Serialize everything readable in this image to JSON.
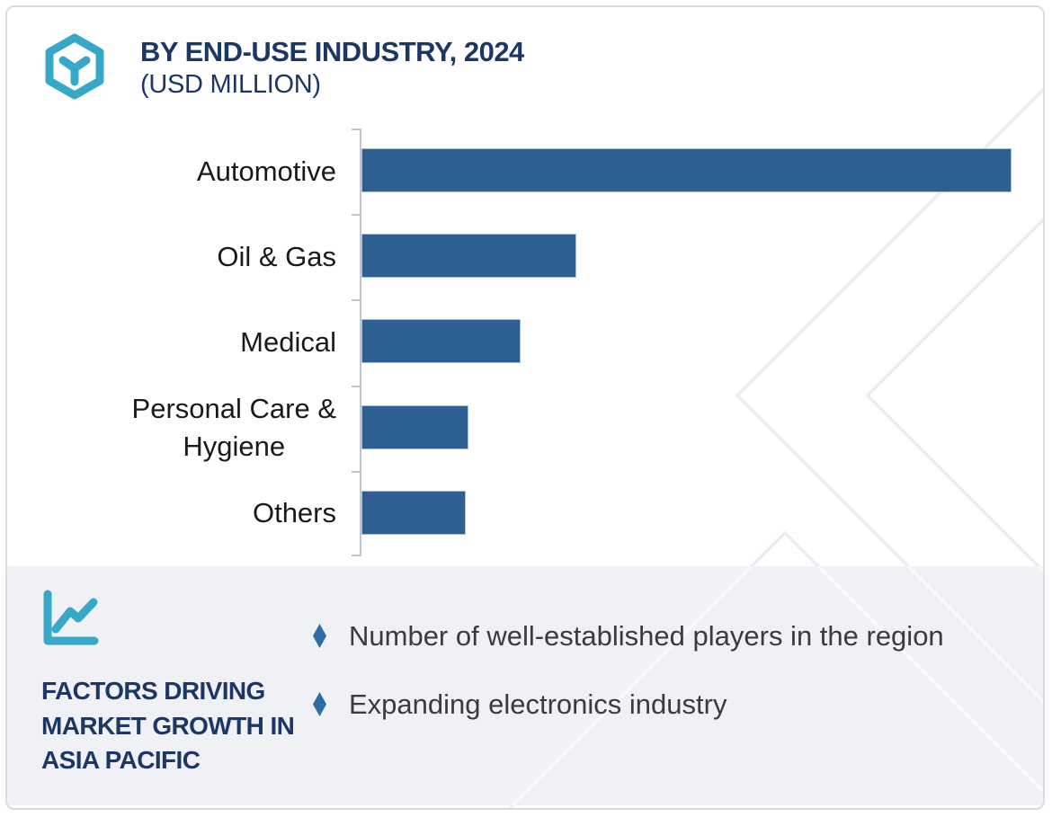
{
  "header": {
    "title": "BY END-USE INDUSTRY, 2024",
    "subtitle": "(USD MILLION)"
  },
  "chart_data": {
    "type": "bar",
    "orientation": "horizontal",
    "title": "BY END-USE INDUSTRY, 2024 (USD MILLION)",
    "unit": "USD Million",
    "categories": [
      "Automotive",
      "Oil & Gas",
      "Medical",
      "Personal Care &\nHygiene",
      "Others"
    ],
    "values_pct_of_max": [
      100,
      33,
      24.5,
      16.5,
      16
    ],
    "value_axis_labels_shown": false,
    "data_labels_shown": false,
    "grid": false,
    "legend": "none",
    "bar_color": "#2D6091"
  },
  "panel": {
    "heading": "FACTORS DRIVING\nMARKET GROWTH IN\nASIA PACIFIC",
    "bullets": [
      "Number of well-established players in the region",
      "Expanding electronics industry"
    ]
  },
  "icons": {
    "logo": "hexagon-y-logo",
    "growth": "line-chart-icon",
    "bullet": "diamond-icon"
  },
  "colors": {
    "navy": "#1C3765",
    "teal": "#38A8C8",
    "bar_blue": "#2D6091",
    "bar_border": "#A3C2DC",
    "bullet_blue": "#2E6CA4",
    "text_dark": "#1A1A1A",
    "bullet_text": "#3B3B3D",
    "panel_bg": "#EFF1F5",
    "axis_gray": "#C3C5C9",
    "watermark": "#ECEDEF",
    "card_border": "#D8DBE0"
  }
}
